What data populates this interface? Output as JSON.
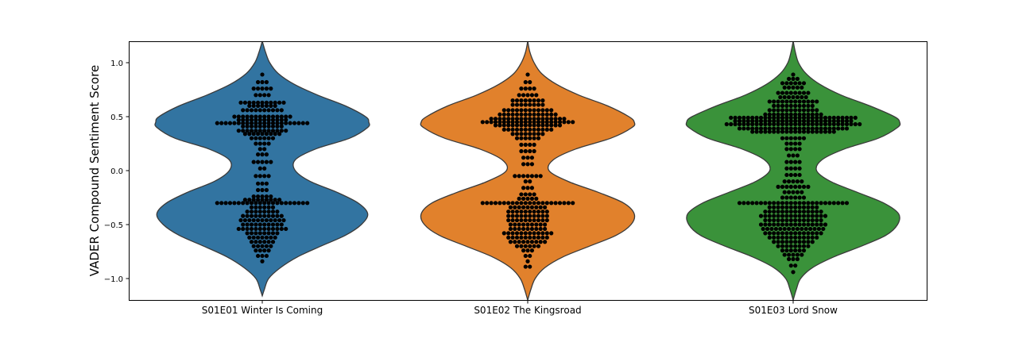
{
  "chart_data": {
    "type": "violin",
    "title": "",
    "xlabel": "",
    "ylabel": "VADER Compound Sentiment Score",
    "ylim": [
      -1.2,
      1.2
    ],
    "yticks": [
      -1.0,
      -0.5,
      0.0,
      0.5,
      1.0
    ],
    "ytick_labels": [
      "−1.0",
      "−0.5",
      "0.0",
      "0.5",
      "1.0"
    ],
    "grid": false,
    "categories": [
      "S01E01 Winter Is Coming",
      "S01E02 The Kingsroad",
      "S01E03 Lord Snow"
    ],
    "colors": [
      "#3274a1",
      "#e1812c",
      "#3a923a"
    ],
    "point_color": "#000000",
    "violins": [
      {
        "category": "S01E01 Winter Is Coming",
        "profile": [
          [
            -1.16,
            0.0
          ],
          [
            -1.1,
            0.02
          ],
          [
            -1.0,
            0.06
          ],
          [
            -0.9,
            0.17
          ],
          [
            -0.8,
            0.33
          ],
          [
            -0.7,
            0.55
          ],
          [
            -0.6,
            0.78
          ],
          [
            -0.5,
            0.93
          ],
          [
            -0.4,
            0.99
          ],
          [
            -0.3,
            0.9
          ],
          [
            -0.2,
            0.7
          ],
          [
            -0.1,
            0.45
          ],
          [
            0.0,
            0.31
          ],
          [
            0.1,
            0.31
          ],
          [
            0.2,
            0.5
          ],
          [
            0.3,
            0.82
          ],
          [
            0.4,
            0.99
          ],
          [
            0.45,
            1.0
          ],
          [
            0.5,
            0.97
          ],
          [
            0.6,
            0.78
          ],
          [
            0.7,
            0.52
          ],
          [
            0.8,
            0.3
          ],
          [
            0.9,
            0.15
          ],
          [
            1.0,
            0.07
          ],
          [
            1.1,
            0.03
          ],
          [
            1.2,
            0.0
          ]
        ],
        "points": [
          [
            0.89,
            1
          ],
          [
            0.82,
            3
          ],
          [
            0.76,
            5
          ],
          [
            0.7,
            4
          ],
          [
            0.63,
            11
          ],
          [
            0.6,
            7
          ],
          [
            0.56,
            10
          ],
          [
            0.5,
            14
          ],
          [
            0.47,
            12
          ],
          [
            0.44,
            22
          ],
          [
            0.41,
            10
          ],
          [
            0.37,
            12
          ],
          [
            0.34,
            9
          ],
          [
            0.3,
            6
          ],
          [
            0.25,
            4
          ],
          [
            0.2,
            2
          ],
          [
            0.15,
            3
          ],
          [
            0.08,
            5
          ],
          [
            0.02,
            2
          ],
          [
            -0.05,
            4
          ],
          [
            -0.12,
            3
          ],
          [
            -0.18,
            3
          ],
          [
            -0.24,
            5
          ],
          [
            -0.27,
            9
          ],
          [
            -0.3,
            22
          ],
          [
            -0.34,
            6
          ],
          [
            -0.38,
            8
          ],
          [
            -0.42,
            10
          ],
          [
            -0.46,
            11
          ],
          [
            -0.5,
            10
          ],
          [
            -0.54,
            12
          ],
          [
            -0.58,
            8
          ],
          [
            -0.62,
            7
          ],
          [
            -0.66,
            6
          ],
          [
            -0.7,
            5
          ],
          [
            -0.74,
            4
          ],
          [
            -0.79,
            3
          ],
          [
            -0.84,
            1
          ]
        ]
      },
      {
        "category": "S01E02 The Kingsroad",
        "profile": [
          [
            -1.2,
            0.0
          ],
          [
            -1.1,
            0.03
          ],
          [
            -1.0,
            0.07
          ],
          [
            -0.9,
            0.16
          ],
          [
            -0.8,
            0.33
          ],
          [
            -0.7,
            0.58
          ],
          [
            -0.6,
            0.83
          ],
          [
            -0.5,
            0.97
          ],
          [
            -0.4,
            1.0
          ],
          [
            -0.3,
            0.9
          ],
          [
            -0.2,
            0.66
          ],
          [
            -0.1,
            0.38
          ],
          [
            0.0,
            0.2
          ],
          [
            0.1,
            0.24
          ],
          [
            0.2,
            0.45
          ],
          [
            0.3,
            0.78
          ],
          [
            0.4,
            0.98
          ],
          [
            0.45,
            1.0
          ],
          [
            0.5,
            0.95
          ],
          [
            0.6,
            0.75
          ],
          [
            0.7,
            0.48
          ],
          [
            0.8,
            0.27
          ],
          [
            0.9,
            0.13
          ],
          [
            1.0,
            0.06
          ],
          [
            1.1,
            0.02
          ],
          [
            1.2,
            0.0
          ]
        ],
        "points": [
          [
            0.89,
            1
          ],
          [
            0.82,
            2
          ],
          [
            0.76,
            4
          ],
          [
            0.7,
            5
          ],
          [
            0.65,
            8
          ],
          [
            0.61,
            8
          ],
          [
            0.56,
            12
          ],
          [
            0.52,
            14
          ],
          [
            0.48,
            18
          ],
          [
            0.45,
            22
          ],
          [
            0.42,
            16
          ],
          [
            0.38,
            12
          ],
          [
            0.34,
            8
          ],
          [
            0.3,
            6
          ],
          [
            0.24,
            4
          ],
          [
            0.18,
            4
          ],
          [
            0.12,
            3
          ],
          [
            0.06,
            3
          ],
          [
            -0.05,
            7
          ],
          [
            -0.1,
            2
          ],
          [
            -0.16,
            3
          ],
          [
            -0.22,
            4
          ],
          [
            -0.26,
            5
          ],
          [
            -0.3,
            22
          ],
          [
            -0.34,
            9
          ],
          [
            -0.38,
            10
          ],
          [
            -0.42,
            10
          ],
          [
            -0.46,
            10
          ],
          [
            -0.5,
            9
          ],
          [
            -0.54,
            9
          ],
          [
            -0.58,
            12
          ],
          [
            -0.62,
            10
          ],
          [
            -0.66,
            9
          ],
          [
            -0.7,
            6
          ],
          [
            -0.74,
            3
          ],
          [
            -0.79,
            2
          ],
          [
            -0.84,
            1
          ],
          [
            -0.89,
            2
          ]
        ]
      },
      {
        "category": "S01E03 Lord Snow",
        "profile": [
          [
            -1.2,
            0.0
          ],
          [
            -1.1,
            0.03
          ],
          [
            -1.0,
            0.07
          ],
          [
            -0.9,
            0.18
          ],
          [
            -0.8,
            0.38
          ],
          [
            -0.7,
            0.64
          ],
          [
            -0.6,
            0.87
          ],
          [
            -0.5,
            0.98
          ],
          [
            -0.4,
            0.99
          ],
          [
            -0.3,
            0.85
          ],
          [
            -0.2,
            0.6
          ],
          [
            -0.1,
            0.35
          ],
          [
            0.0,
            0.22
          ],
          [
            0.1,
            0.27
          ],
          [
            0.2,
            0.48
          ],
          [
            0.3,
            0.8
          ],
          [
            0.4,
            0.98
          ],
          [
            0.45,
            1.0
          ],
          [
            0.5,
            0.95
          ],
          [
            0.6,
            0.72
          ],
          [
            0.7,
            0.45
          ],
          [
            0.8,
            0.25
          ],
          [
            0.9,
            0.12
          ],
          [
            1.0,
            0.05
          ],
          [
            1.1,
            0.02
          ],
          [
            1.2,
            0.0
          ]
        ],
        "points": [
          [
            0.89,
            1
          ],
          [
            0.85,
            3
          ],
          [
            0.81,
            6
          ],
          [
            0.77,
            5
          ],
          [
            0.72,
            8
          ],
          [
            0.68,
            7
          ],
          [
            0.64,
            12
          ],
          [
            0.6,
            10
          ],
          [
            0.56,
            12
          ],
          [
            0.52,
            14
          ],
          [
            0.49,
            30
          ],
          [
            0.46,
            28
          ],
          [
            0.43,
            32
          ],
          [
            0.39,
            26
          ],
          [
            0.36,
            20
          ],
          [
            0.3,
            6
          ],
          [
            0.25,
            4
          ],
          [
            0.2,
            4
          ],
          [
            0.14,
            3
          ],
          [
            0.08,
            4
          ],
          [
            0.02,
            4
          ],
          [
            -0.04,
            4
          ],
          [
            -0.1,
            5
          ],
          [
            -0.15,
            8
          ],
          [
            -0.2,
            5
          ],
          [
            -0.25,
            6
          ],
          [
            -0.3,
            26
          ],
          [
            -0.34,
            12
          ],
          [
            -0.38,
            14
          ],
          [
            -0.42,
            16
          ],
          [
            -0.46,
            14
          ],
          [
            -0.5,
            16
          ],
          [
            -0.54,
            15
          ],
          [
            -0.58,
            14
          ],
          [
            -0.62,
            12
          ],
          [
            -0.66,
            10
          ],
          [
            -0.7,
            8
          ],
          [
            -0.74,
            6
          ],
          [
            -0.78,
            5
          ],
          [
            -0.82,
            3
          ],
          [
            -0.88,
            2
          ],
          [
            -0.94,
            1
          ]
        ]
      }
    ]
  }
}
